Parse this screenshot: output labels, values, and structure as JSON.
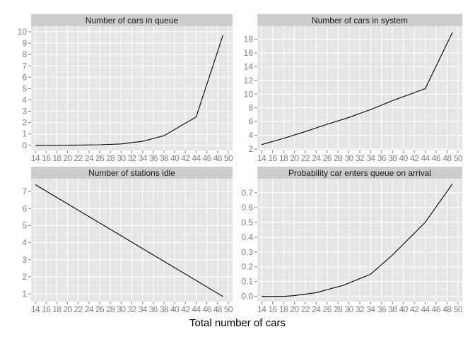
{
  "chart_data": {
    "type": "line",
    "xlabel": "Total number of cars",
    "x": [
      14,
      16,
      18,
      20,
      22,
      24,
      26,
      28,
      30,
      32,
      34,
      36,
      38,
      40,
      42,
      44,
      46,
      48,
      50
    ],
    "panels": [
      {
        "title": "Number of cars in queue",
        "yticks": [
          0,
          1,
          2,
          3,
          4,
          5,
          6,
          7,
          8,
          9,
          10
        ],
        "ylim": [
          -0.45,
          10.5
        ],
        "xlim": [
          13.2,
          50.8
        ],
        "series": [
          {
            "x": [
              14,
              18,
              22,
              26,
              30,
              34,
              38,
              44,
              49
            ],
            "values": [
              0.0,
              0.0,
              0.02,
              0.05,
              0.12,
              0.35,
              0.85,
              2.5,
              9.7
            ]
          }
        ]
      },
      {
        "title": "Number of cars in system",
        "yticks": [
          2,
          4,
          6,
          8,
          10,
          12,
          14,
          16,
          18
        ],
        "ylim": [
          1.8,
          19.9
        ],
        "xlim": [
          13.2,
          50.8
        ],
        "series": [
          {
            "x": [
              14,
              18,
              22,
              26,
              30,
              34,
              38,
              44,
              49
            ],
            "values": [
              2.65,
              3.55,
              4.55,
              5.6,
              6.6,
              7.75,
              9.05,
              10.8,
              19.0
            ]
          }
        ]
      },
      {
        "title": "Number of stations idle",
        "yticks": [
          1,
          2,
          3,
          4,
          5,
          6,
          7
        ],
        "ylim": [
          0.55,
          7.75
        ],
        "xlim": [
          13.2,
          50.8
        ],
        "series": [
          {
            "x": [
              14,
              49
            ],
            "values": [
              7.4,
              0.85
            ]
          }
        ]
      },
      {
        "title": "Probability car enters queue on arrival",
        "yticks": [
          0.0,
          0.1,
          0.2,
          0.3,
          0.4,
          0.5,
          0.6,
          0.7
        ],
        "ylim": [
          -0.035,
          0.795
        ],
        "xlim": [
          13.2,
          50.8
        ],
        "series": [
          {
            "x": [
              14,
              18,
              20,
              24,
              29,
              34,
              38,
              44,
              49
            ],
            "values": [
              0.0,
              0.0,
              0.005,
              0.025,
              0.075,
              0.15,
              0.28,
              0.5,
              0.76
            ]
          }
        ]
      }
    ]
  }
}
